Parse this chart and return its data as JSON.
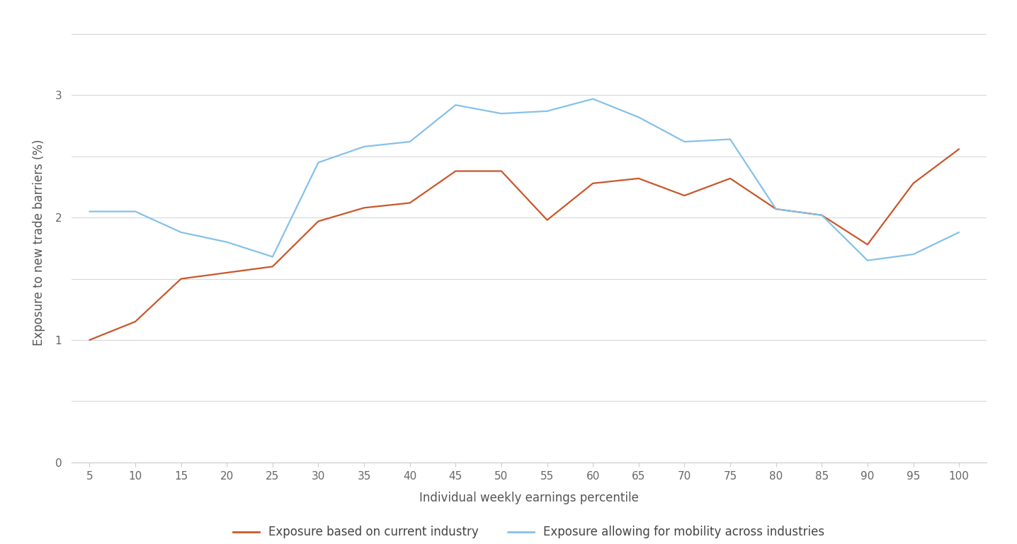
{
  "x": [
    5,
    10,
    15,
    20,
    25,
    30,
    35,
    40,
    45,
    50,
    55,
    60,
    65,
    70,
    75,
    80,
    85,
    90,
    95,
    100
  ],
  "orange_line": [
    1.0,
    1.15,
    1.5,
    1.55,
    1.6,
    1.97,
    2.08,
    2.12,
    2.38,
    2.38,
    1.98,
    2.28,
    2.32,
    2.18,
    2.32,
    2.07,
    2.02,
    1.78,
    2.28,
    2.56
  ],
  "blue_line": [
    2.05,
    2.05,
    1.88,
    1.8,
    1.68,
    2.45,
    2.58,
    2.62,
    2.92,
    2.85,
    2.87,
    2.97,
    2.82,
    2.62,
    2.64,
    2.07,
    2.02,
    1.65,
    1.7,
    1.88
  ],
  "orange_color": "#C8572A",
  "blue_color": "#85C1E9",
  "xlabel": "Individual weekly earnings percentile",
  "ylabel": "Exposure to new trade barriers (%)",
  "legend_orange": "Exposure based on current industry",
  "legend_blue": "Exposure allowing for mobility across industries",
  "ylim_bottom": 0,
  "ylim_top": 3.6,
  "xlim_left": 3,
  "xlim_right": 103,
  "xticks": [
    5,
    10,
    15,
    20,
    25,
    30,
    35,
    40,
    45,
    50,
    55,
    60,
    65,
    70,
    75,
    80,
    85,
    90,
    95,
    100
  ],
  "ytick_labeled": [
    0,
    1,
    2,
    3
  ],
  "grid_positions": [
    0,
    0.5,
    1.0,
    1.5,
    2.0,
    2.5,
    3.0,
    3.5
  ],
  "background_color": "#ffffff",
  "grid_color": "#d8d8d8",
  "line_width": 1.6,
  "tick_fontsize": 11,
  "label_fontsize": 12,
  "legend_fontsize": 12
}
